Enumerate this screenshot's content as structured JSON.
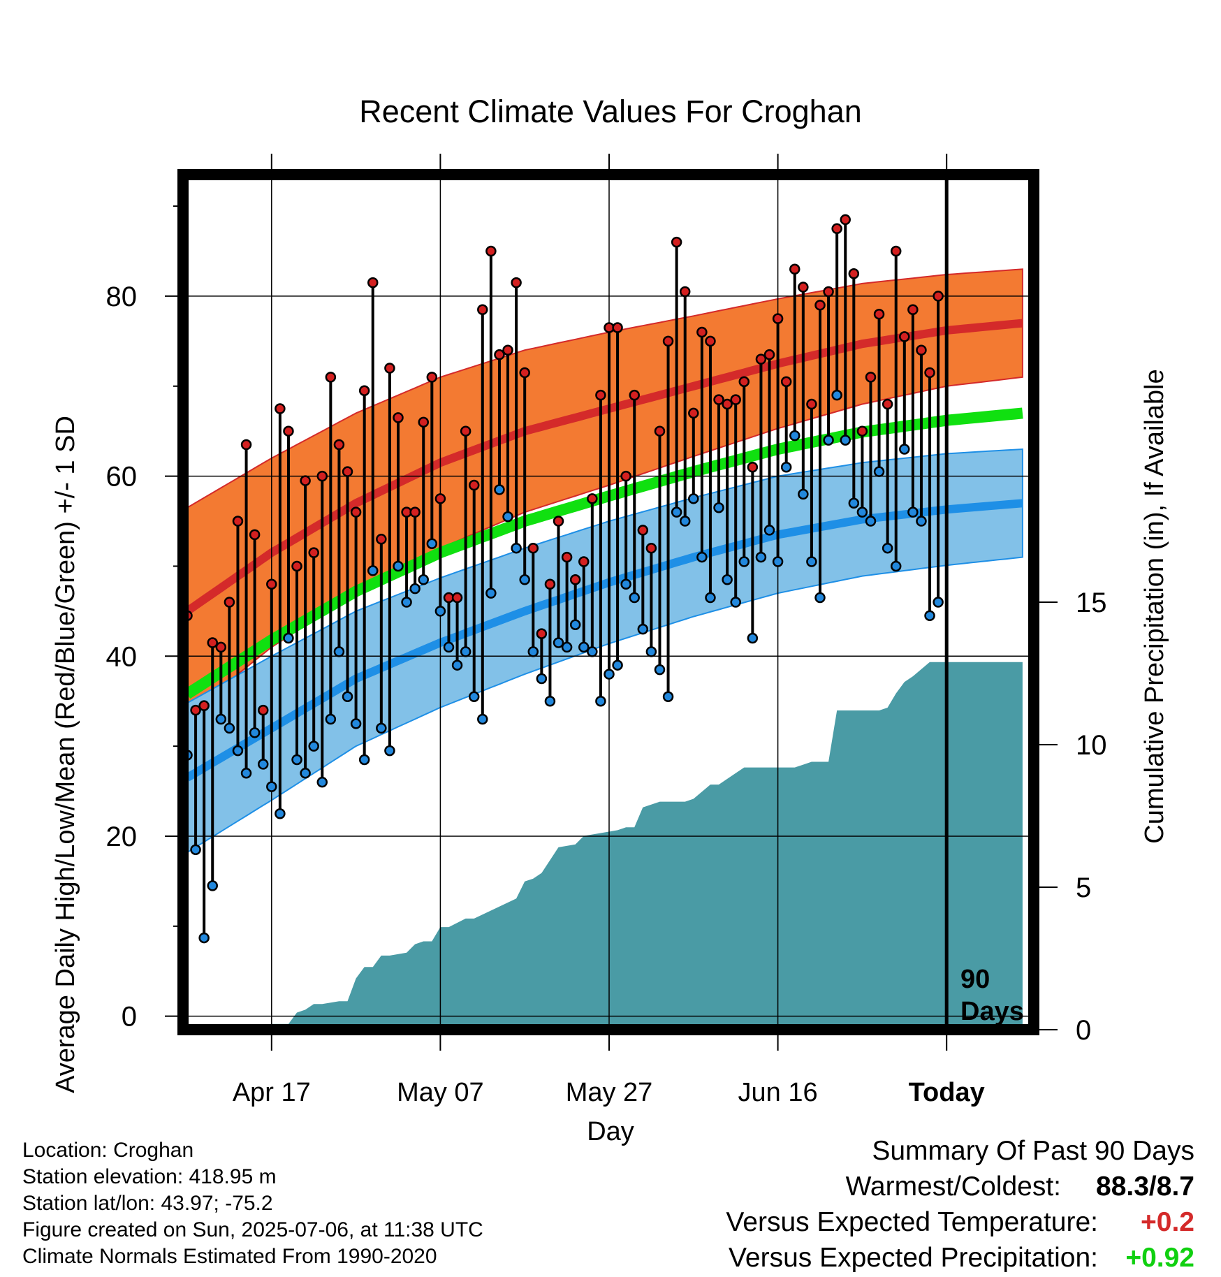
{
  "chart_data": {
    "type": "line",
    "title": "Recent Climate Values For Croghan",
    "xlabel": "Day",
    "ylabel": "Average Daily High/Low/Mean (Red/Blue/Green) +/- 1 SD",
    "y2label": "Cumulative Precipitation (in), If Available",
    "ylim": [
      -1.5,
      93.5
    ],
    "y2lim": [
      0,
      30
    ],
    "yticks": [
      0,
      20,
      40,
      60,
      80
    ],
    "y2ticks": [
      0,
      5,
      10,
      15
    ],
    "xticks": [
      {
        "day": 10,
        "label": "Apr 17"
      },
      {
        "day": 30,
        "label": "May 07"
      },
      {
        "day": 50,
        "label": "May 27"
      },
      {
        "day": 70,
        "label": "Jun 16"
      },
      {
        "day": 90,
        "label": "Today"
      }
    ],
    "today_marker": {
      "day": 90,
      "label_line1": "90",
      "label_line2": "Days"
    },
    "normals": {
      "days": [
        0,
        10,
        20,
        30,
        40,
        50,
        60,
        70,
        80,
        90,
        99
      ],
      "high_mean": [
        45,
        51.5,
        57,
        61.5,
        65,
        67.5,
        70,
        72.5,
        74.7,
        76.2,
        77
      ],
      "high_sd": [
        11.5,
        10.5,
        10,
        9.5,
        9,
        8.5,
        7.8,
        7.2,
        6.7,
        6.2,
        6
      ],
      "low_mean": [
        26.5,
        32,
        37.5,
        41.5,
        45,
        48.2,
        51,
        53.5,
        55.2,
        56.3,
        57
      ],
      "low_sd": [
        8.3,
        8,
        7.5,
        7.2,
        7,
        6.8,
        6.6,
        6.5,
        6.3,
        6.2,
        6
      ],
      "avg_mean": [
        35.8,
        41.8,
        47.2,
        51.5,
        55,
        57.8,
        60.5,
        63,
        64.9,
        66.2,
        67
      ]
    },
    "series": [
      {
        "name": "High",
        "values": [
          44.5,
          34,
          34.5,
          41.5,
          41,
          46,
          55,
          63.5,
          53.5,
          34,
          48,
          67.5,
          65,
          50,
          59.5,
          51.5,
          60,
          71,
          63.5,
          60.5,
          56,
          69.5,
          81.5,
          53,
          72,
          66.5,
          56,
          56,
          66,
          71,
          57.5,
          46.5,
          46.5,
          65,
          59,
          78.5,
          85,
          73.5,
          74,
          81.5,
          71.5,
          52,
          42.5,
          48,
          55,
          51,
          48.5,
          50.5,
          57.5,
          69,
          76.5,
          76.5,
          60,
          69,
          54,
          52,
          65,
          75,
          86,
          80.5,
          67,
          76,
          75,
          68.5,
          68,
          68.5,
          70.5,
          61,
          73,
          73.5,
          77.5,
          70.5,
          83,
          81,
          68,
          79,
          80.5,
          87.5,
          88.5,
          82.5,
          65,
          71,
          78,
          68,
          85,
          75.5,
          78.5,
          74,
          71.5,
          80
        ]
      },
      {
        "name": "Low",
        "values": [
          29,
          18.5,
          8.7,
          14.5,
          33,
          32,
          29.5,
          27,
          31.5,
          28,
          25.5,
          22.5,
          42,
          28.5,
          27,
          30,
          26,
          33,
          40.5,
          35.5,
          32.5,
          28.5,
          49.5,
          32,
          29.5,
          50,
          46,
          47.5,
          48.5,
          52.5,
          45,
          41,
          39,
          40.5,
          35.5,
          33,
          47,
          58.5,
          55.5,
          52,
          48.5,
          40.5,
          37.5,
          35,
          41.5,
          41,
          43.5,
          41,
          40.5,
          35,
          38,
          39,
          48,
          46.5,
          43,
          40.5,
          38.5,
          35.5,
          56,
          55,
          57.5,
          51,
          46.5,
          56.5,
          48.5,
          46,
          50.5,
          42,
          51,
          54,
          50.5,
          61,
          64.5,
          58,
          50.5,
          46.5,
          64,
          69,
          64,
          57,
          56,
          55,
          60.5,
          52,
          50,
          63,
          56,
          55,
          44.5,
          46
        ]
      }
    ],
    "precip": {
      "days": [
        0,
        7,
        8,
        10,
        11,
        12,
        13,
        14,
        15,
        16,
        18,
        19,
        20,
        21,
        22,
        23,
        24,
        26,
        27,
        28,
        29,
        30,
        31,
        33,
        34,
        39,
        40,
        41,
        42,
        44,
        46,
        47,
        51,
        52,
        53,
        54,
        56,
        59,
        60,
        62,
        63,
        65,
        66,
        72,
        73,
        74,
        76,
        77,
        82,
        83,
        84,
        85,
        86,
        88,
        99
      ],
      "values": [
        0,
        0,
        0.1,
        0.2,
        0.2,
        0.2,
        0.6,
        0.7,
        0.9,
        0.9,
        1.0,
        1.0,
        1.8,
        2.2,
        2.2,
        2.6,
        2.6,
        2.7,
        3.0,
        3.1,
        3.1,
        3.6,
        3.6,
        3.9,
        3.9,
        4.6,
        5.2,
        5.3,
        5.5,
        6.4,
        6.5,
        6.8,
        7.0,
        7.1,
        7.1,
        7.8,
        8.0,
        8.0,
        8.1,
        8.6,
        8.6,
        9.0,
        9.2,
        9.2,
        9.3,
        9.4,
        9.4,
        11.2,
        11.2,
        11.3,
        11.8,
        12.2,
        12.4,
        12.9,
        12.9
      ]
    }
  },
  "info": {
    "location": "Location: Croghan",
    "elevation": "Station elevation: 418.95 m",
    "latlon": "Station lat/lon: 43.97; -75.2",
    "created": "Figure created on Sun, 2025-07-06, at 11:38 UTC",
    "normals": "Climate Normals Estimated From 1990-2020"
  },
  "summary": {
    "title": "Summary Of Past 90 Days",
    "warmest_coldest_label": "Warmest/Coldest:",
    "warmest_coldest_value": "88.3/8.7",
    "temp_label": "Versus Expected Temperature:",
    "temp_value": "+0.2",
    "prcp_label": "Versus Expected Precipitation:",
    "prcp_value": "+0.92"
  },
  "colors": {
    "high_band": "#f37a32",
    "high_line": "#d42a2a",
    "low_band": "#82c1e8",
    "low_line": "#1e8fe6",
    "avg_line": "#10e010",
    "precip_fill": "#4a9ba5",
    "high_dot": "#d42020",
    "low_dot": "#2288dd",
    "temp_delta": "#d42a2a",
    "prcp_delta": "#10d010"
  }
}
